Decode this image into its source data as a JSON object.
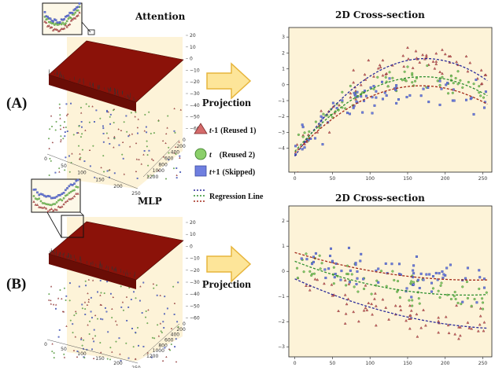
{
  "panels": {
    "a": {
      "label": "(A)",
      "title3d": "Attention",
      "projection": "Projection"
    },
    "b": {
      "label": "(B)",
      "title3d": "MLP",
      "projection": "Projection"
    }
  },
  "legend": {
    "items": [
      {
        "prefix": "t",
        "suffix": "-1",
        "tag": "(Reused 1)",
        "color": "#d46a6a",
        "marker": "triangle"
      },
      {
        "prefix": "t",
        "suffix": "",
        "tag": "(Reused 2)",
        "color": "#8bcf6a",
        "marker": "circle"
      },
      {
        "prefix": "t",
        "suffix": "+1",
        "tag": "(Skipped)",
        "color": "#6f7fe0",
        "marker": "square"
      }
    ],
    "regression_label": "Regression Line",
    "line_colors": [
      "#2a2a9a",
      "#2f8f2f",
      "#a32a1a"
    ]
  },
  "colors": {
    "panel_bg": "#fdf3d8",
    "surface": "#8b1209",
    "arrow_fill": "#fde599",
    "arrow_stroke": "#e7b53c"
  },
  "axes3d": {
    "a": {
      "z_ticks": [
        "20",
        "10",
        "0",
        "−10",
        "−20",
        "−30",
        "−40",
        "−50",
        "−60"
      ],
      "y_ticks": [
        "1200",
        "1000",
        "800",
        "600",
        "400",
        "200",
        "0"
      ],
      "x_ticks": [
        "0",
        "50",
        "100",
        "150",
        "200",
        "250"
      ]
    },
    "b": {
      "z_ticks": [
        "20",
        "10",
        "0",
        "−10",
        "−20",
        "−30",
        "−40",
        "−50",
        "−60"
      ],
      "y_ticks": [
        "1200",
        "1000",
        "800",
        "600",
        "400",
        "200",
        "0"
      ],
      "x_ticks": [
        "0",
        "50",
        "100",
        "150",
        "200",
        "250"
      ]
    }
  },
  "chart_data": [
    {
      "type": "scatter",
      "title": "2D Cross-section",
      "xlim": [
        -8,
        262
      ],
      "ylim": [
        -5.5,
        3.6
      ],
      "x_ticks": [
        0,
        50,
        100,
        150,
        200,
        250
      ],
      "y_ticks": [
        -4,
        -3,
        -2,
        -1,
        0,
        1,
        2,
        3
      ],
      "series": [
        {
          "name": "t-1 (Reused 1)",
          "fit": {
            "a": -0.000204,
            "b": 0.0708,
            "c": -4.5
          },
          "spread": 0.9
        },
        {
          "name": "t (Reused 2)",
          "fit": {
            "a": -0.000162,
            "b": 0.0552,
            "c": -4.2
          },
          "spread": 0.6
        },
        {
          "name": "t+1 (Skipped)",
          "fit": {
            "a": -0.00015,
            "b": 0.0504,
            "c": -4.3
          },
          "spread": 0.8
        }
      ]
    },
    {
      "type": "scatter",
      "title": "2D Cross-section",
      "xlim": [
        -8,
        262
      ],
      "ylim": [
        -3.4,
        2.6
      ],
      "x_ticks": [
        0,
        50,
        100,
        150,
        200,
        250
      ],
      "y_ticks": [
        -3,
        -2,
        -1,
        0,
        1,
        2
      ],
      "series": [
        {
          "name": "t-1 (Reused 1)",
          "fit": {
            "a": 2.32e-05,
            "b": -0.0136,
            "c": -0.3
          },
          "spread": 0.6
        },
        {
          "name": "t (Reused 2)",
          "fit": {
            "a": 2.59e-05,
            "b": -0.0118,
            "c": 0.4
          },
          "spread": 0.5
        },
        {
          "name": "t+1 (Skipped)",
          "fit": {
            "a": 1.93e-05,
            "b": -0.0092,
            "c": 0.75
          },
          "spread": 0.7
        }
      ]
    }
  ]
}
